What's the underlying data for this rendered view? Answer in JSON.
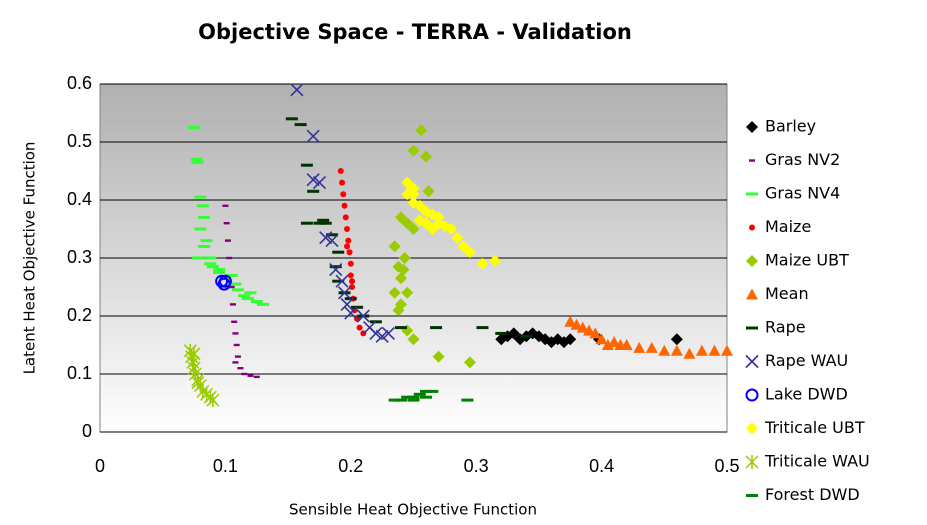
{
  "chart_data": {
    "type": "scatter",
    "title": "Objective Space - TERRA - Validation",
    "x_label": "Sensible Heat Objective Function",
    "y_label": "Latent Heat Objective Function",
    "xlim": [
      0,
      0.5
    ],
    "ylim": [
      0,
      0.6
    ],
    "xticks": [
      0,
      0.1,
      0.2,
      0.3,
      0.4,
      0.5
    ],
    "yticks": [
      0,
      0.1,
      0.2,
      0.3,
      0.4,
      0.5,
      0.6
    ],
    "grid": true,
    "legend": "right",
    "series": [
      {
        "name": "Barley",
        "color": "#000000",
        "marker": "diamond",
        "x": [
          0.32,
          0.325,
          0.33,
          0.335,
          0.34,
          0.345,
          0.35,
          0.355,
          0.36,
          0.365,
          0.37,
          0.375,
          0.398,
          0.46
        ],
        "y": [
          0.16,
          0.165,
          0.17,
          0.16,
          0.165,
          0.17,
          0.165,
          0.16,
          0.155,
          0.16,
          0.155,
          0.16,
          0.16,
          0.16
        ]
      },
      {
        "name": "Gras NV2",
        "color": "#800080",
        "marker": "smalldash",
        "x": [
          0.1,
          0.101,
          0.102,
          0.103,
          0.104,
          0.105,
          0.106,
          0.107,
          0.108,
          0.109,
          0.11,
          0.112,
          0.115,
          0.12,
          0.125,
          0.108
        ],
        "y": [
          0.39,
          0.36,
          0.33,
          0.3,
          0.27,
          0.25,
          0.22,
          0.19,
          0.17,
          0.15,
          0.13,
          0.11,
          0.1,
          0.097,
          0.095,
          0.12
        ]
      },
      {
        "name": "Gras NV4",
        "color": "#33ff33",
        "marker": "dash",
        "x": [
          0.075,
          0.077,
          0.078,
          0.08,
          0.082,
          0.083,
          0.08,
          0.085,
          0.083,
          0.088,
          0.09,
          0.095,
          0.1,
          0.105,
          0.11,
          0.115,
          0.12,
          0.125,
          0.13,
          0.088,
          0.095,
          0.108,
          0.118,
          0.078
        ],
        "y": [
          0.525,
          0.47,
          0.465,
          0.405,
          0.39,
          0.37,
          0.35,
          0.33,
          0.32,
          0.3,
          0.285,
          0.275,
          0.265,
          0.27,
          0.245,
          0.235,
          0.24,
          0.225,
          0.22,
          0.29,
          0.28,
          0.255,
          0.23,
          0.3
        ]
      },
      {
        "name": "Maize",
        "color": "#ff0000",
        "marker": "dot",
        "x": [
          0.192,
          0.193,
          0.194,
          0.195,
          0.196,
          0.197,
          0.198,
          0.199,
          0.2,
          0.2,
          0.201,
          0.202,
          0.203,
          0.205,
          0.207,
          0.21,
          0.197,
          0.201
        ],
        "y": [
          0.45,
          0.43,
          0.41,
          0.39,
          0.37,
          0.35,
          0.33,
          0.31,
          0.29,
          0.27,
          0.25,
          0.23,
          0.21,
          0.195,
          0.18,
          0.17,
          0.32,
          0.26
        ]
      },
      {
        "name": "Maize UBT",
        "color": "#99cc00",
        "marker": "diamond",
        "x": [
          0.256,
          0.25,
          0.26,
          0.262,
          0.255,
          0.24,
          0.245,
          0.25,
          0.235,
          0.243,
          0.238,
          0.242,
          0.24,
          0.235,
          0.245,
          0.24,
          0.238,
          0.245,
          0.25,
          0.27,
          0.295
        ],
        "y": [
          0.52,
          0.485,
          0.475,
          0.415,
          0.39,
          0.37,
          0.36,
          0.35,
          0.32,
          0.3,
          0.285,
          0.28,
          0.265,
          0.24,
          0.24,
          0.22,
          0.21,
          0.175,
          0.16,
          0.13,
          0.12
        ]
      },
      {
        "name": "Mean",
        "color": "#ff6600",
        "marker": "triangle",
        "x": [
          0.375,
          0.38,
          0.385,
          0.39,
          0.4,
          0.41,
          0.42,
          0.43,
          0.44,
          0.45,
          0.46,
          0.47,
          0.48,
          0.49,
          0.5,
          0.395,
          0.405,
          0.415
        ],
        "y": [
          0.19,
          0.185,
          0.18,
          0.175,
          0.16,
          0.155,
          0.15,
          0.145,
          0.145,
          0.14,
          0.14,
          0.135,
          0.14,
          0.14,
          0.14,
          0.17,
          0.15,
          0.15
        ]
      },
      {
        "name": "Rape",
        "color": "#003300",
        "marker": "dash",
        "x": [
          0.153,
          0.16,
          0.165,
          0.17,
          0.178,
          0.18,
          0.175,
          0.165,
          0.185,
          0.19,
          0.188,
          0.19,
          0.195,
          0.2,
          0.205,
          0.21,
          0.22,
          0.24,
          0.268,
          0.305,
          0.32,
          0.34
        ],
        "y": [
          0.54,
          0.53,
          0.46,
          0.415,
          0.365,
          0.36,
          0.36,
          0.36,
          0.34,
          0.31,
          0.285,
          0.26,
          0.24,
          0.23,
          0.215,
          0.2,
          0.19,
          0.18,
          0.18,
          0.18,
          0.17,
          0.165
        ]
      },
      {
        "name": "Rape WAU",
        "color": "#333399",
        "marker": "x",
        "x": [
          0.157,
          0.17,
          0.17,
          0.175,
          0.18,
          0.185,
          0.188,
          0.193,
          0.195,
          0.197,
          0.2,
          0.21,
          0.215,
          0.22,
          0.225,
          0.23
        ],
        "y": [
          0.59,
          0.51,
          0.435,
          0.43,
          0.335,
          0.33,
          0.28,
          0.26,
          0.24,
          0.22,
          0.205,
          0.2,
          0.18,
          0.17,
          0.165,
          0.17
        ]
      },
      {
        "name": "Lake DWD",
        "color": "#0000ff",
        "marker": "circle",
        "x": [
          0.097,
          0.099,
          0.1
        ],
        "y": [
          0.26,
          0.255,
          0.26
        ]
      },
      {
        "name": "Triticale UBT",
        "color": "#ffff00",
        "marker": "diamond",
        "x": [
          0.245,
          0.25,
          0.245,
          0.25,
          0.255,
          0.26,
          0.265,
          0.255,
          0.26,
          0.27,
          0.275,
          0.28,
          0.265,
          0.285,
          0.29,
          0.295,
          0.305,
          0.315,
          0.25,
          0.27
        ],
        "y": [
          0.43,
          0.42,
          0.41,
          0.395,
          0.39,
          0.38,
          0.375,
          0.365,
          0.36,
          0.36,
          0.355,
          0.35,
          0.35,
          0.335,
          0.32,
          0.31,
          0.29,
          0.295,
          0.41,
          0.37
        ]
      },
      {
        "name": "Triticale WAU",
        "color": "#99cc00",
        "marker": "asterisk",
        "x": [
          0.072,
          0.073,
          0.074,
          0.075,
          0.076,
          0.078,
          0.08,
          0.082,
          0.085,
          0.088,
          0.09,
          0.078,
          0.075
        ],
        "y": [
          0.14,
          0.13,
          0.12,
          0.11,
          0.1,
          0.09,
          0.08,
          0.07,
          0.065,
          0.06,
          0.055,
          0.085,
          0.135
        ]
      },
      {
        "name": "Forest DWD",
        "color": "#008000",
        "marker": "dash",
        "x": [
          0.235,
          0.24,
          0.245,
          0.25,
          0.255,
          0.26,
          0.265,
          0.25,
          0.26,
          0.293
        ],
        "y": [
          0.055,
          0.055,
          0.06,
          0.06,
          0.065,
          0.07,
          0.07,
          0.055,
          0.06,
          0.055
        ]
      }
    ]
  }
}
